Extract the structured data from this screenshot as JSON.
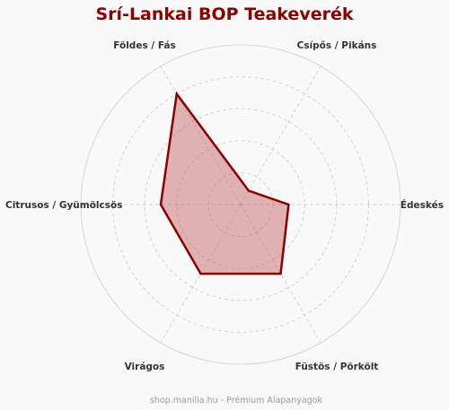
{
  "chart_data": {
    "type": "radar",
    "title": "Srí-Lankai BOP Teakeverék",
    "axes": [
      "Édeskés",
      "Csípős / Pikáns",
      "Földes / Fás",
      "Citrusos / Gyümölcsös",
      "Virágos",
      "Füstös / Pörkölt"
    ],
    "series": [
      {
        "values": [
          3,
          1,
          8,
          5,
          5,
          5
        ]
      }
    ],
    "rmax": 10,
    "rings": 5,
    "grid": true,
    "colors": {
      "line": "#8b0000",
      "fill": "#c0585a",
      "grid": "#cfcfcf",
      "title": "#8b0000"
    }
  },
  "footer": "shop.manilia.hu - Prémium Alapanyagok"
}
